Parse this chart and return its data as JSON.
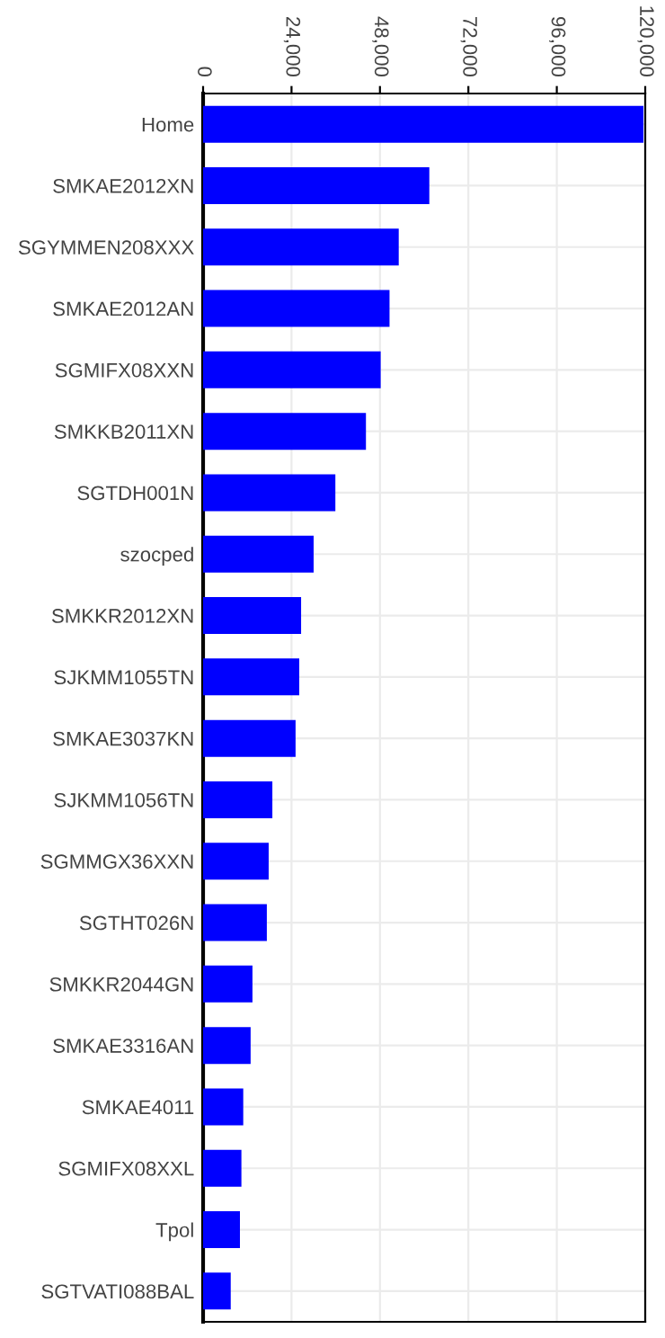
{
  "chart_data": {
    "type": "bar",
    "orientation": "horizontal",
    "categories": [
      "Home",
      "SMKAE2012XN",
      "SGYMMEN208XXX",
      "SMKAE2012AN",
      "SGMIFX08XXN",
      "SMKKB2011XN",
      "SGTDH001N",
      "szocped",
      "SMKKR2012XN",
      "SJKMM1055TN",
      "SMKAE3037KN",
      "SJKMM1056TN",
      "SGMMGX36XXN",
      "SGTHT026N",
      "SMKKR2044GN",
      "SMKAE3316AN",
      "SMKAE4011",
      "SGMIFX08XXL",
      "Tpol",
      "SGTVATI088BAL"
    ],
    "values": [
      119500,
      61400,
      53100,
      50600,
      48200,
      44200,
      35900,
      30000,
      26600,
      26100,
      25100,
      18800,
      17800,
      17300,
      13400,
      12900,
      10900,
      10400,
      10000,
      7500
    ],
    "color": "#0000ff",
    "xlim": [
      0,
      120000
    ],
    "xticks": [
      0,
      {
        "value": 24000,
        "label": "24,000"
      },
      {
        "value": 48000,
        "label": "48,000"
      },
      {
        "value": 72000,
        "label": "72,000"
      },
      {
        "value": 96000,
        "label": "96,000"
      },
      {
        "value": 120000,
        "label": "120,000"
      }
    ],
    "grid": true
  }
}
